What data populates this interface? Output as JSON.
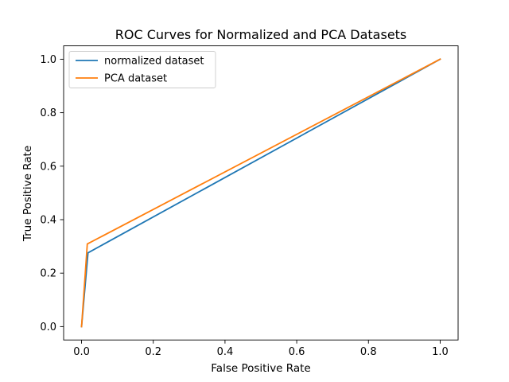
{
  "chart_data": {
    "type": "line",
    "title": "ROC Curves for Normalized and PCA Datasets",
    "xlabel": "False Positive Rate",
    "ylabel": "True Positive Rate",
    "xlim": [
      -0.05,
      1.05
    ],
    "ylim": [
      -0.05,
      1.05
    ],
    "xticks": [
      0.0,
      0.2,
      0.4,
      0.6,
      0.8,
      1.0
    ],
    "yticks": [
      0.0,
      0.2,
      0.4,
      0.6,
      0.8,
      1.0
    ],
    "xtick_labels": [
      "0.0",
      "0.2",
      "0.4",
      "0.6",
      "0.8",
      "1.0"
    ],
    "ytick_labels": [
      "0.0",
      "0.2",
      "0.4",
      "0.6",
      "0.8",
      "1.0"
    ],
    "grid": false,
    "legend_position": "top-left",
    "series": [
      {
        "name": "normalized dataset",
        "color": "#1f77b4",
        "x": [
          0.0,
          0.018,
          1.0
        ],
        "y": [
          0.0,
          0.276,
          1.0
        ]
      },
      {
        "name": "PCA dataset",
        "color": "#ff7f0e",
        "x": [
          0.0,
          0.016,
          1.0
        ],
        "y": [
          0.0,
          0.309,
          1.0
        ]
      }
    ]
  }
}
